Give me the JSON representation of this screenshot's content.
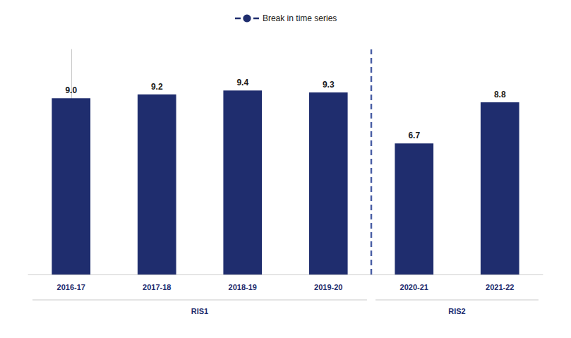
{
  "chart_data": {
    "type": "bar",
    "categories": [
      "2016-17",
      "2017-18",
      "2018-19",
      "2019-20",
      "2020-21",
      "2021-22"
    ],
    "values": [
      9.0,
      9.2,
      9.4,
      9.3,
      6.7,
      8.8
    ],
    "value_labels": [
      "9.0",
      "9.2",
      "9.4",
      "9.3",
      "6.7",
      "8.8"
    ],
    "color": "#1f2d6e",
    "ylim": [
      0,
      11.5
    ],
    "data_labels": true,
    "tick_labels": "x",
    "grid": false,
    "legend": "top",
    "annotations": [
      {
        "text": "RIS1",
        "categories": [
          "2016-17",
          "2017-18",
          "2018-19",
          "2019-20"
        ]
      },
      {
        "text": "RIS2",
        "categories": [
          "2020-21",
          "2021-22"
        ]
      }
    ],
    "break_line": {
      "label": "Break in time series",
      "after": "2019-20",
      "color": "#4a5fa5",
      "legend_color": "#1f2d6e",
      "line_style": "dashed"
    }
  }
}
